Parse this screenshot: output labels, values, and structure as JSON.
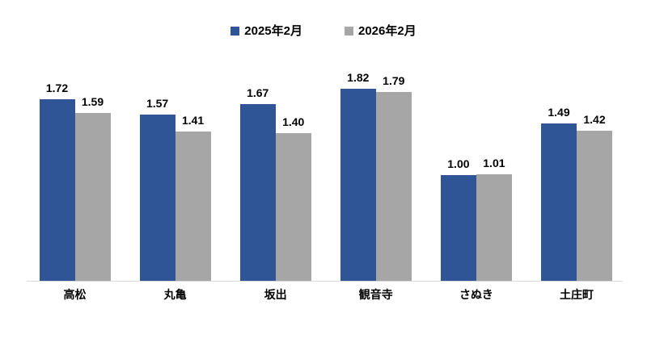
{
  "chart_data": {
    "type": "bar",
    "categories": [
      "高松",
      "丸亀",
      "坂出",
      "観音寺",
      "さぬき",
      "土庄町"
    ],
    "series": [
      {
        "name": "2025年2月",
        "color": "#2F5597",
        "values": [
          1.72,
          1.57,
          1.67,
          1.82,
          1.0,
          1.49
        ],
        "labels": [
          "1.72",
          "1.57",
          "1.67",
          "1.82",
          "1.00",
          "1.49"
        ]
      },
      {
        "name": "2026年2月",
        "color": "#A6A6A6",
        "values": [
          1.59,
          1.41,
          1.4,
          1.79,
          1.01,
          1.42
        ],
        "labels": [
          "1.59",
          "1.41",
          "1.40",
          "1.79",
          "1.01",
          "1.42"
        ]
      }
    ],
    "title": "",
    "xlabel": "",
    "ylabel": "",
    "ylim": [
      0,
      2
    ],
    "grid": false,
    "legend_position": "top",
    "axis_line_color": "#D9D9D9",
    "background_color": "#FFFFFF",
    "text_color": "#000000"
  }
}
